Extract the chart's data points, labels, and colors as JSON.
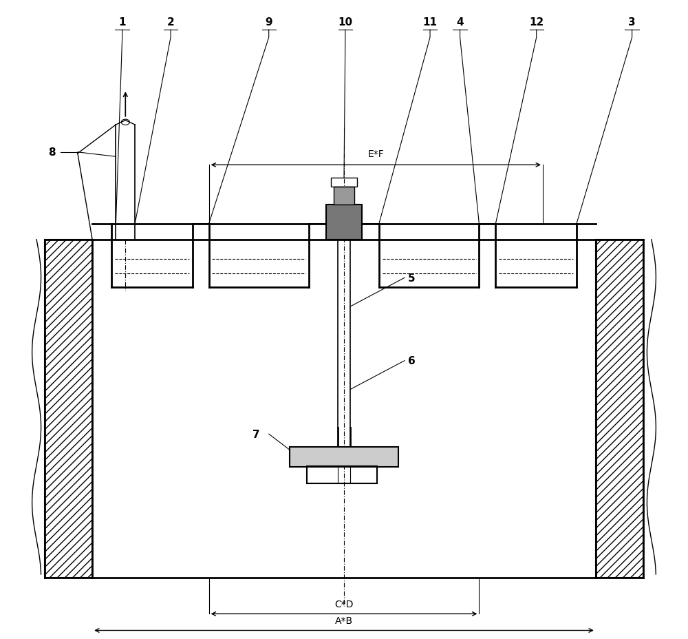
{
  "title": "",
  "background_color": "#ffffff",
  "line_color": "#000000",
  "figure_width": 10.0,
  "figure_height": 9.29,
  "dim_EF_label": "E*F",
  "dim_CD_label": "C*D",
  "dim_AB_label": "A*B"
}
